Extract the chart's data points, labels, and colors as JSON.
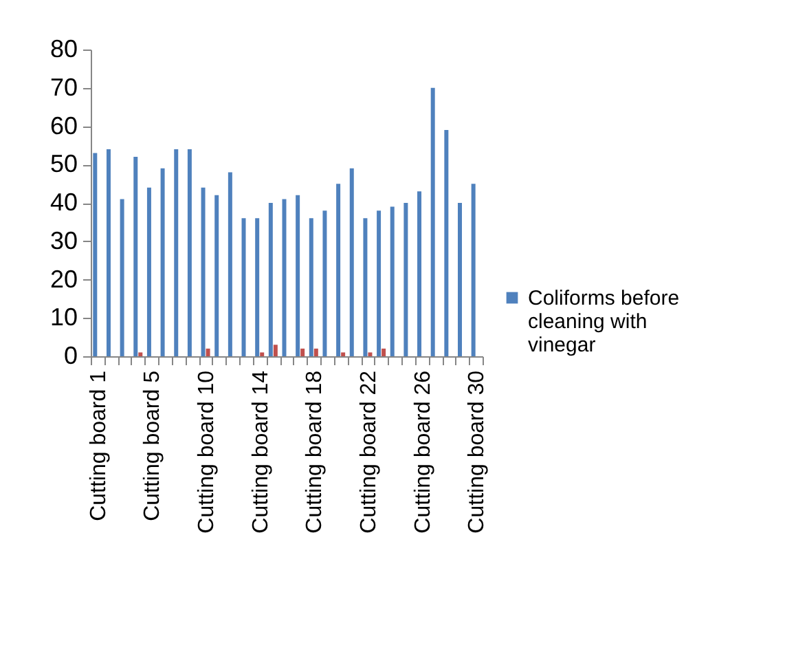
{
  "chart_data": {
    "type": "bar",
    "categories": [
      "Cutting board 1",
      null,
      null,
      null,
      "Cutting board 5",
      null,
      null,
      null,
      "Cutting board 10",
      null,
      null,
      null,
      "Cutting board 14",
      null,
      null,
      null,
      "Cutting board 18",
      null,
      null,
      null,
      "Cutting board 22",
      null,
      null,
      null,
      "Cutting board 26",
      null,
      null,
      null,
      "Cutting board 30"
    ],
    "series": [
      {
        "name": "Coliforms before cleaning with vinegar",
        "color": "#4f81bd",
        "values": [
          53,
          54,
          41,
          52,
          44,
          49,
          54,
          54,
          44,
          42,
          48,
          36,
          36,
          40,
          41,
          42,
          36,
          38,
          45,
          49,
          36,
          38,
          39,
          40,
          43,
          70,
          59,
          40,
          45
        ]
      },
      {
        "color": "#c0504d",
        "values": [
          0,
          0,
          0,
          1,
          0,
          0,
          0,
          0,
          2,
          0,
          0,
          0,
          1,
          3,
          0,
          2,
          2,
          0,
          1,
          0,
          1,
          2,
          0,
          0,
          0,
          0,
          0,
          0,
          0
        ]
      }
    ],
    "ylim": [
      0,
      80
    ],
    "yticks": [
      0,
      10,
      20,
      30,
      40,
      50,
      60,
      70,
      80
    ],
    "grid": false,
    "legend": "right"
  }
}
